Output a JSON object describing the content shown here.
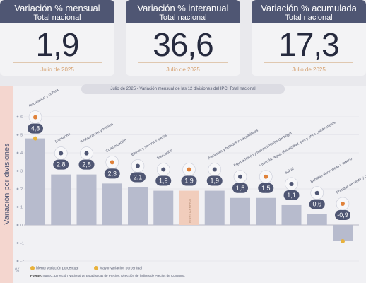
{
  "cards": [
    {
      "title": "Variación % mensual",
      "subtitle": "Total nacional",
      "value": "1,9",
      "date": "Julio de 2025"
    },
    {
      "title": "Variación % interanual",
      "subtitle": "Total nacional",
      "value": "36,6",
      "date": "Julio de 2025"
    },
    {
      "title": "Variación % acumulada",
      "subtitle": "Total nacional",
      "value": "17,3",
      "date": "Julio de 2025"
    }
  ],
  "y_axis_label": "Variación por divisiones",
  "y_unit": "%",
  "legend": {
    "min": "Menor variación porcentual",
    "max": "Mayor variación porcentual"
  },
  "source": {
    "label": "Fuente:",
    "text": "INDEC, Dirección Nacional de Estadísticas de Precios. Dirección de Índices de Precios de Consumo."
  },
  "colors": {
    "header": "#4f5673",
    "bar": "#b7bbcd",
    "general_bar": "#f1cdbc",
    "highlight": "#e8b23c",
    "badge": "#4f5673"
  },
  "chart_data": {
    "type": "bar",
    "title": "Julio de 2025 - Variación mensual de las 12 divisiones del IPC. Total nacional",
    "ylabel": "Variación por divisiones",
    "y_ticks": [
      -2,
      -1,
      0,
      1,
      2,
      3,
      4,
      5,
      6
    ],
    "ylim": [
      -2.3,
      6.3
    ],
    "grid": true,
    "categories": [
      "Recreación y cultura",
      "Transporte",
      "Restaurantes y hoteles",
      "Comunicación",
      "Bienes y servicios varios",
      "Educación",
      "NIVEL GENERAL",
      "Alimentos y bebidas no alcohólicas",
      "Equipamiento y mantenimiento del hogar",
      "Vivienda, agua, electricidad, gas y otros combustibles",
      "Salud",
      "Bebidas alcohólicas y tabaco",
      "Prendas de vestir y calzado"
    ],
    "values": [
      4.8,
      2.8,
      2.8,
      2.3,
      2.1,
      1.9,
      1.9,
      1.9,
      1.5,
      1.5,
      1.1,
      0.6,
      -0.9
    ],
    "labels": [
      "4,8",
      "2,8",
      "2,8",
      "2,3",
      "2,1",
      "1,9",
      "1,9",
      "1,9",
      "1,5",
      "1,5",
      "1,1",
      "0,6",
      "-0,9"
    ],
    "general_index": 6,
    "max_index": 0,
    "min_index": 12,
    "icons": [
      "confetti-icon",
      "car-icon",
      "utensils-icon",
      "phone-icon",
      "handbag-icon",
      "book-icon",
      "",
      "food-basket-icon",
      "furniture-icon",
      "tools-icon",
      "medical-cross-icon",
      "bottle-icon",
      "hanger-icon"
    ]
  }
}
